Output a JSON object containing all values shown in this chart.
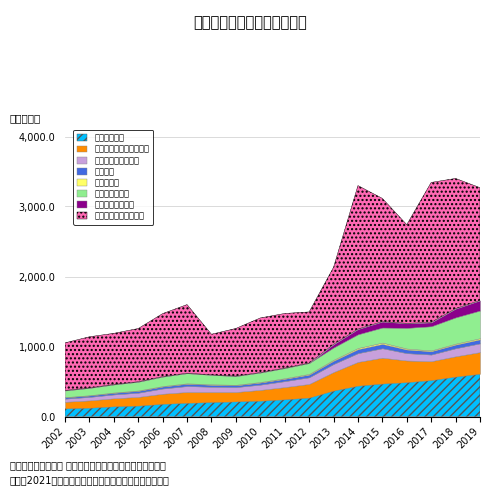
{
  "title": "図１　医薬品産業の技術輸出",
  "ylabel": "（十億円）",
  "years": [
    2002,
    2003,
    2004,
    2005,
    2006,
    2007,
    2008,
    2009,
    2010,
    2011,
    2012,
    2013,
    2014,
    2015,
    2016,
    2017,
    2018,
    2019
  ],
  "series": [
    {
      "name": "医薬品製造業",
      "color": "#00BFFF",
      "hatch": "////",
      "values": [
        115,
        125,
        145,
        155,
        180,
        195,
        205,
        215,
        225,
        245,
        270,
        370,
        440,
        470,
        490,
        520,
        570,
        610
      ]
    },
    {
      "name": "情報通信機械器具製造業",
      "color": "#FF8C00",
      "hatch": "",
      "values": [
        95,
        105,
        115,
        125,
        145,
        155,
        145,
        135,
        155,
        175,
        195,
        265,
        340,
        370,
        310,
        270,
        290,
        310
      ]
    },
    {
      "name": "電気機械器具製造業",
      "color": "#C8A0DC",
      "hatch": "",
      "values": [
        45,
        50,
        55,
        60,
        75,
        85,
        75,
        70,
        75,
        85,
        95,
        115,
        125,
        135,
        105,
        95,
        115,
        125
      ]
    },
    {
      "name": "化学工業",
      "color": "#4169E1",
      "hatch": "",
      "values": [
        18,
        20,
        23,
        26,
        28,
        32,
        28,
        26,
        30,
        33,
        38,
        47,
        57,
        62,
        52,
        47,
        52,
        57
      ]
    },
    {
      "name": "情報通信業",
      "color": "#FFFF66",
      "hatch": "",
      "values": [
        4,
        4,
        5,
        6,
        7,
        7,
        7,
        7,
        8,
        9,
        11,
        14,
        17,
        19,
        14,
        12,
        14,
        17
      ]
    },
    {
      "name": "その他の製造業",
      "color": "#90EE90",
      "hatch": "",
      "values": [
        95,
        105,
        115,
        125,
        135,
        145,
        135,
        125,
        135,
        145,
        155,
        175,
        195,
        215,
        295,
        345,
        375,
        395
      ]
    },
    {
      "name": "その他の非製造業",
      "color": "#8B008B",
      "hatch": "",
      "values": [
        0,
        0,
        0,
        0,
        0,
        0,
        0,
        0,
        0,
        0,
        0,
        45,
        75,
        85,
        65,
        55,
        125,
        145
      ]
    },
    {
      "name": "輸送用機械器具製造業",
      "color": "#FF69B4",
      "hatch": "....",
      "values": [
        680,
        730,
        730,
        760,
        900,
        980,
        580,
        680,
        780,
        780,
        730,
        1100,
        2050,
        1760,
        1410,
        2000,
        1860,
        1610
      ]
    }
  ],
  "ylim": [
    0,
    4200
  ],
  "yticks": [
    0,
    1000,
    2000,
    3000,
    4000
  ],
  "ytick_labels": [
    "0.0",
    "1,000.0",
    "2,000.0",
    "3,000.0",
    "4,000.0"
  ],
  "source_text": "（出所）文部科学省 科学技術・学術政策研究所、「科学技\n術指標2021」を基に、医薬産業政策研究所が加工・作成",
  "background_color": "#ffffff",
  "grid_color": "#cccccc"
}
